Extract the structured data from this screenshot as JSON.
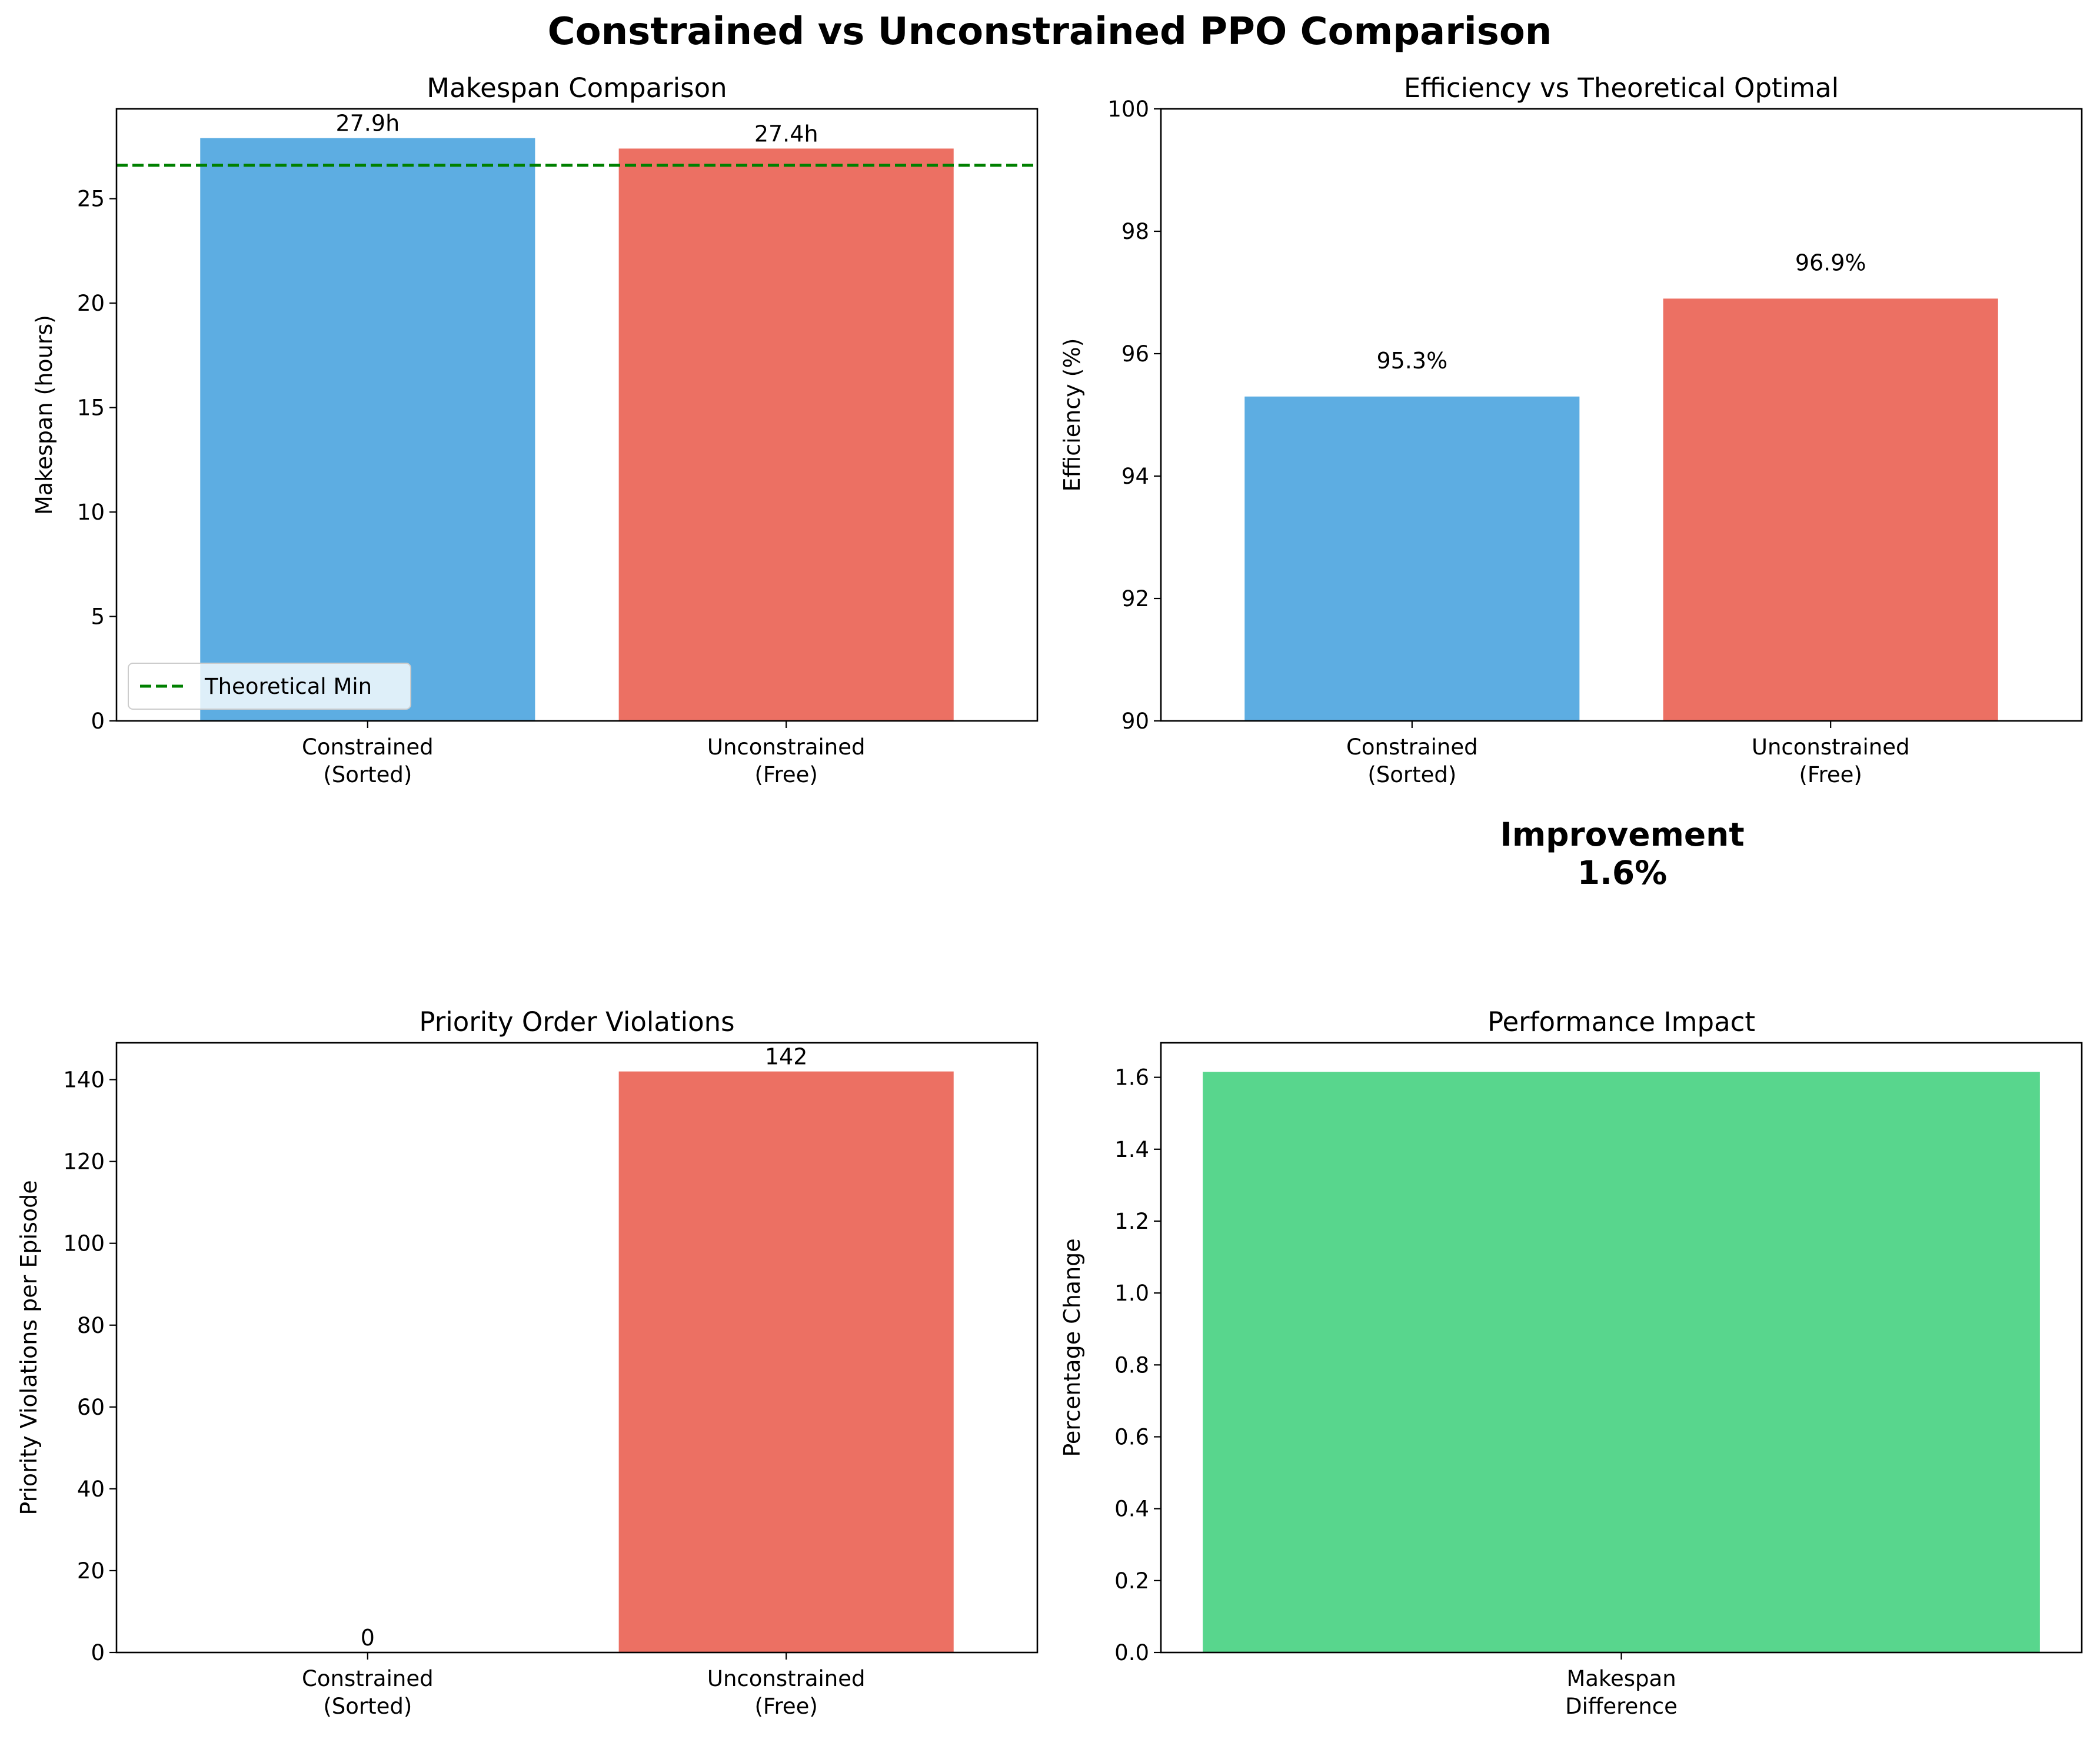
{
  "figure": {
    "title": "Constrained vs Unconstrained PPO Comparison",
    "colors": {
      "constrained": "#5dade2",
      "unconstrained": "#ec7063",
      "impact": "#58d68d",
      "reference": "#008000"
    }
  },
  "improvement_callout": {
    "title": "Improvement",
    "value": "1.6%"
  },
  "chart_data": [
    {
      "id": "makespan",
      "type": "bar",
      "title": "Makespan Comparison",
      "xlabel": "",
      "ylabel": "Makespan (hours)",
      "categories": [
        "Constrained\n(Sorted)",
        "Unconstrained\n(Free)"
      ],
      "values": [
        27.9,
        27.4
      ],
      "data_labels": [
        "27.9h",
        "27.4h"
      ],
      "ylim": [
        0,
        29.3
      ],
      "yticks": [
        0,
        5,
        10,
        15,
        20,
        25
      ],
      "reference_line": {
        "label": "Theoretical Min",
        "value": 26.6,
        "style": "dashed"
      },
      "legend": {
        "position": "lower-left",
        "entries": [
          "Theoretical Min"
        ]
      },
      "grid": false
    },
    {
      "id": "efficiency",
      "type": "bar",
      "title": "Efficiency vs Theoretical Optimal",
      "xlabel": "",
      "ylabel": "Efficiency (%)",
      "categories": [
        "Constrained\n(Sorted)",
        "Unconstrained\n(Free)"
      ],
      "values": [
        95.3,
        96.9
      ],
      "data_labels": [
        "95.3%",
        "96.9%"
      ],
      "ylim": [
        90,
        100
      ],
      "yticks": [
        90,
        92,
        94,
        96,
        98,
        100
      ],
      "grid": false
    },
    {
      "id": "violations",
      "type": "bar",
      "title": "Priority Order Violations",
      "xlabel": "",
      "ylabel": "Priority Violations per Episode",
      "categories": [
        "Constrained\n(Sorted)",
        "Unconstrained\n(Free)"
      ],
      "values": [
        0,
        142
      ],
      "data_labels": [
        "0",
        "142"
      ],
      "ylim": [
        0,
        149
      ],
      "yticks": [
        0,
        20,
        40,
        60,
        80,
        100,
        120,
        140
      ],
      "grid": false
    },
    {
      "id": "impact",
      "type": "bar",
      "title": "Performance Impact",
      "xlabel": "",
      "ylabel": "Percentage Change",
      "categories": [
        "Makespan\nDifference"
      ],
      "values": [
        1.615
      ],
      "data_labels": [],
      "ylim": [
        0,
        1.696
      ],
      "yticks": [
        0.0,
        0.2,
        0.4,
        0.6,
        0.8,
        1.0,
        1.2,
        1.4,
        1.6
      ],
      "ytick_decimals": 1,
      "grid": false
    }
  ]
}
